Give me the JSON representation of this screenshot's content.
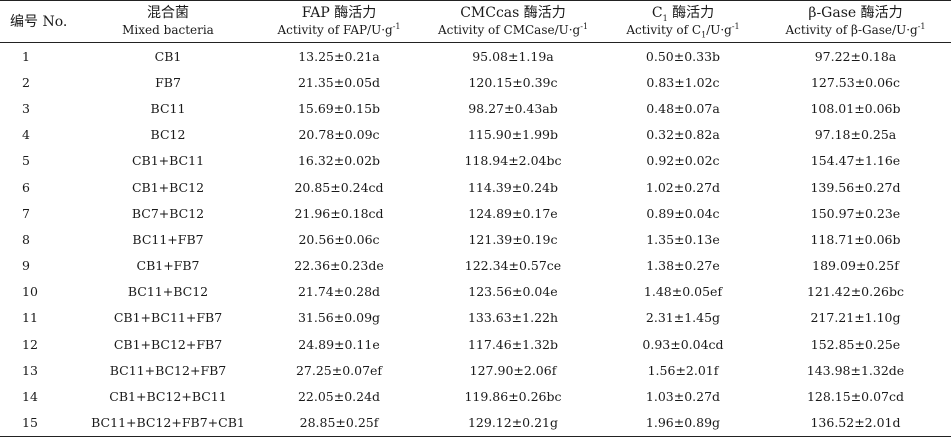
{
  "headers": {
    "col0": "编号 No.",
    "col1_zh": "混合菌",
    "col1_en": "Mixed bacteria",
    "col2_zh": "FAP 酶活力",
    "col2_en": "Activity of FAP/U·g",
    "col3_zh": "CMCcas 酶活力",
    "col3_en": "Activity of CMCase/U·g",
    "col4_zh_pre": "C",
    "col4_zh_sub": "1",
    "col4_zh_post": " 酶活力",
    "col4_en_pre": "Activity of C",
    "col4_en_sub": "1",
    "col4_en_post": "/U·g",
    "col5_zh": "β-Gase 酶活力",
    "col5_en": "Activity of β-Gase/U·g",
    "sup": "-1"
  },
  "rows": [
    {
      "no": "1",
      "mix": "CB1",
      "fap": "13.25±0.21a",
      "cmc": "95.08±1.19a",
      "c1": "0.50±0.33b",
      "bg": "97.22±0.18a"
    },
    {
      "no": "2",
      "mix": "FB7",
      "fap": "21.35±0.05d",
      "cmc": "120.15±0.39c",
      "c1": "0.83±1.02c",
      "bg": "127.53±0.06c"
    },
    {
      "no": "3",
      "mix": "BC11",
      "fap": "15.69±0.15b",
      "cmc": "98.27±0.43ab",
      "c1": "0.48±0.07a",
      "bg": "108.01±0.06b"
    },
    {
      "no": "4",
      "mix": "BC12",
      "fap": "20.78±0.09c",
      "cmc": "115.90±1.99b",
      "c1": "0.32±0.82a",
      "bg": "97.18±0.25a"
    },
    {
      "no": "5",
      "mix": "CB1+BC11",
      "fap": "16.32±0.02b",
      "cmc": "118.94±2.04bc",
      "c1": "0.92±0.02c",
      "bg": "154.47±1.16e"
    },
    {
      "no": "6",
      "mix": "CB1+BC12",
      "fap": "20.85±0.24cd",
      "cmc": "114.39±0.24b",
      "c1": "1.02±0.27d",
      "bg": "139.56±0.27d"
    },
    {
      "no": "7",
      "mix": "BC7+BC12",
      "fap": "21.96±0.18cd",
      "cmc": "124.89±0.17e",
      "c1": "0.89±0.04c",
      "bg": "150.97±0.23e"
    },
    {
      "no": "8",
      "mix": "BC11+FB7",
      "fap": "20.56±0.06c",
      "cmc": "121.39±0.19c",
      "c1": "1.35±0.13e",
      "bg": "118.71±0.06b"
    },
    {
      "no": "9",
      "mix": "CB1+FB7",
      "fap": "22.36±0.23de",
      "cmc": "122.34±0.57ce",
      "c1": "1.38±0.27e",
      "bg": "189.09±0.25f"
    },
    {
      "no": "10",
      "mix": "BC11+BC12",
      "fap": "21.74±0.28d",
      "cmc": "123.56±0.04e",
      "c1": "1.48±0.05ef",
      "bg": "121.42±0.26bc"
    },
    {
      "no": "11",
      "mix": "CB1+BC11+FB7",
      "fap": "31.56±0.09g",
      "cmc": "133.63±1.22h",
      "c1": "2.31±1.45g",
      "bg": "217.21±1.10g"
    },
    {
      "no": "12",
      "mix": "CB1+BC12+FB7",
      "fap": "24.89±0.11e",
      "cmc": "117.46±1.32b",
      "c1": "0.93±0.04cd",
      "bg": "152.85±0.25e"
    },
    {
      "no": "13",
      "mix": "BC11+BC12+FB7",
      "fap": "27.25±0.07ef",
      "cmc": "127.90±2.06f",
      "c1": "1.56±2.01f",
      "bg": "143.98±1.32de"
    },
    {
      "no": "14",
      "mix": "CB1+BC12+BC11",
      "fap": "22.05±0.24d",
      "cmc": "119.86±0.26bc",
      "c1": "1.03±0.27d",
      "bg": "128.15±0.07cd"
    },
    {
      "no": "15",
      "mix": "BC11+BC12+FB7+CB1",
      "fap": "28.85±0.25f",
      "cmc": "129.12±0.21g",
      "c1": "1.96±0.89g",
      "bg": "136.52±2.01d"
    }
  ]
}
